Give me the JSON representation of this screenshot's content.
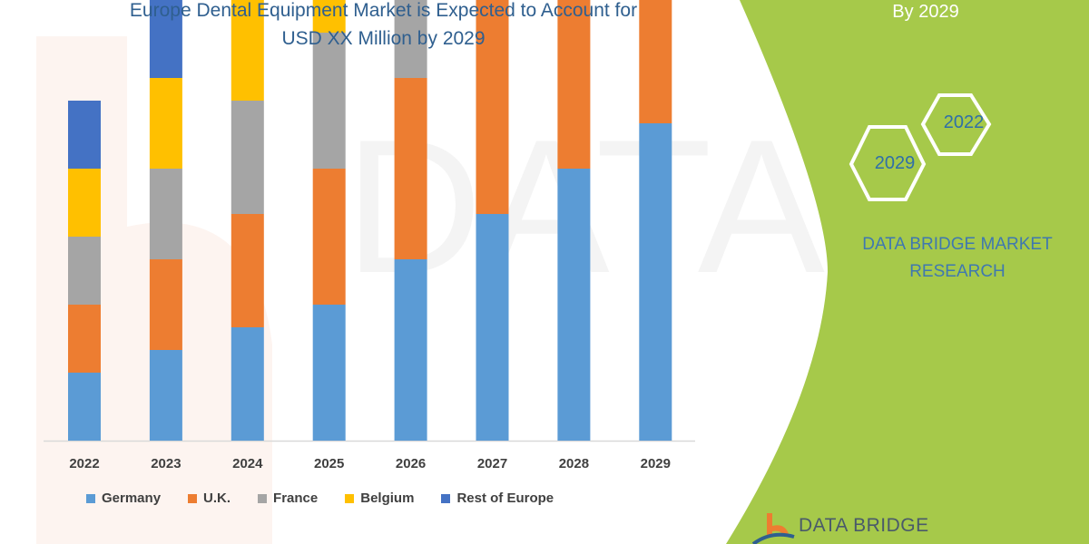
{
  "header": {
    "title_line1": "Europe Dental Equipment Market is Expected to Account for",
    "title_line2": "USD XX Million by 2029"
  },
  "side_panel": {
    "by_label": "By 2029",
    "hex_years": [
      "2022",
      "2029"
    ],
    "brand_line1": "DATA BRIDGE MARKET",
    "brand_line2": "RESEARCH",
    "accent_color": "#a6c94a"
  },
  "logo": {
    "text": "DATA BRIDGE",
    "watermark": "DATA BRIDGE MARKET RESEARCH"
  },
  "chart_data": {
    "type": "bar",
    "stacked": true,
    "categories": [
      "2022",
      "2023",
      "2024",
      "2025",
      "2026",
      "2027",
      "2028",
      "2029"
    ],
    "series": [
      {
        "name": "Germany",
        "color": "#5b9bd5",
        "values": [
          15,
          20,
          25,
          30,
          40,
          50,
          60,
          70
        ]
      },
      {
        "name": "U.K.",
        "color": "#ed7d31",
        "values": [
          15,
          20,
          25,
          30,
          40,
          50,
          60,
          70
        ]
      },
      {
        "name": "France",
        "color": "#a5a5a5",
        "values": [
          15,
          20,
          25,
          30,
          40,
          50,
          60,
          70
        ]
      },
      {
        "name": "Belgium",
        "color": "#ffc000",
        "values": [
          15,
          20,
          25,
          30,
          40,
          50,
          60,
          70
        ]
      },
      {
        "name": "Rest of Europe",
        "color": "#4472c4",
        "values": [
          15,
          20,
          25,
          30,
          40,
          50,
          60,
          70
        ]
      }
    ],
    "y_axis_shown": false,
    "grid": false,
    "legend_position": "bottom"
  }
}
